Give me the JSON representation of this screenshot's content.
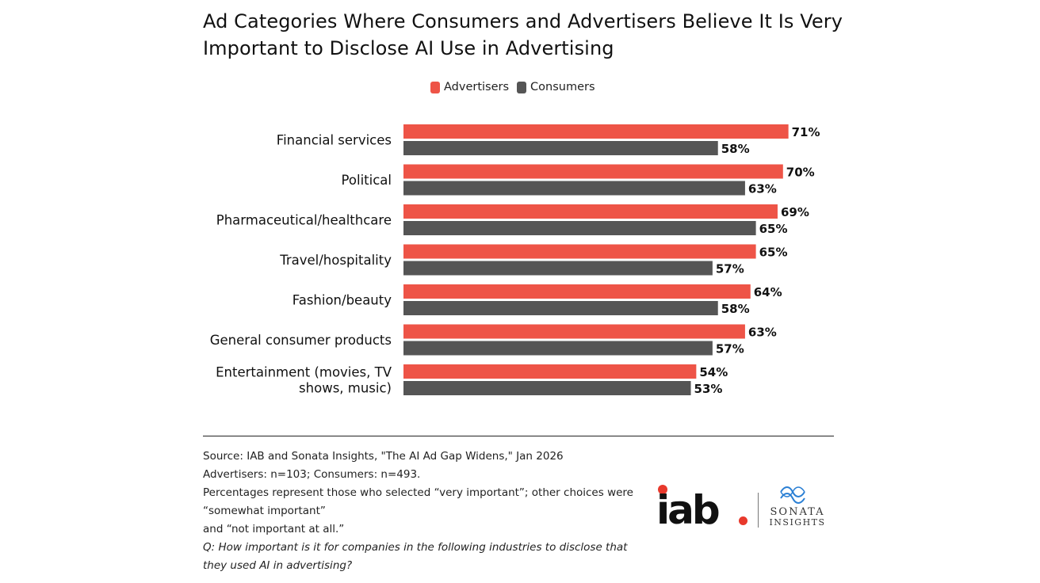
{
  "chart_data": {
    "type": "bar",
    "orientation": "horizontal",
    "title_lines": [
      "Ad Categories Where Consumers and Advertisers Believe It Is Very",
      "Important to Disclose AI Use in Advertising"
    ],
    "category_lines": [
      [
        "Financial services"
      ],
      [
        "Political"
      ],
      [
        "Pharmaceutical/healthcare"
      ],
      [
        "Travel/hospitality"
      ],
      [
        "Fashion/beauty"
      ],
      [
        "General consumer products"
      ],
      [
        "Entertainment (movies, TV",
        "shows, music)"
      ]
    ],
    "series": [
      {
        "name": "Advertisers",
        "color": "#ee5447",
        "values": [
          71,
          70,
          69,
          65,
          64,
          63,
          54
        ]
      },
      {
        "name": "Consumers",
        "color": "#555555",
        "values": [
          58,
          63,
          65,
          57,
          58,
          57,
          53
        ]
      }
    ],
    "value_suffix": "%",
    "legend_position": "top-center",
    "xlim": [
      0,
      100
    ],
    "grid": false
  },
  "legend": {
    "advertisers_label": "Advertisers",
    "consumers_label": "Consumers"
  },
  "notes": {
    "source": "Source: IAB and Sonata Insights, \"The AI Ad Gap Widens,\" Jan 2026",
    "sample": "Advertisers: n=103; Consumers: n=493.",
    "pct_line1": "Percentages represent those who selected “very important”; other choices were",
    "pct_line2": "“somewhat important”",
    "pct_line3": "and “not important at all.”",
    "question_line1": "Q: How important is it for companies in the following industries to disclose that",
    "question_line2": "they used AI in advertising?"
  },
  "logos": {
    "iab": "iab",
    "sonata_line1": "SONATA",
    "sonata_line2": "INSIGHTS"
  }
}
